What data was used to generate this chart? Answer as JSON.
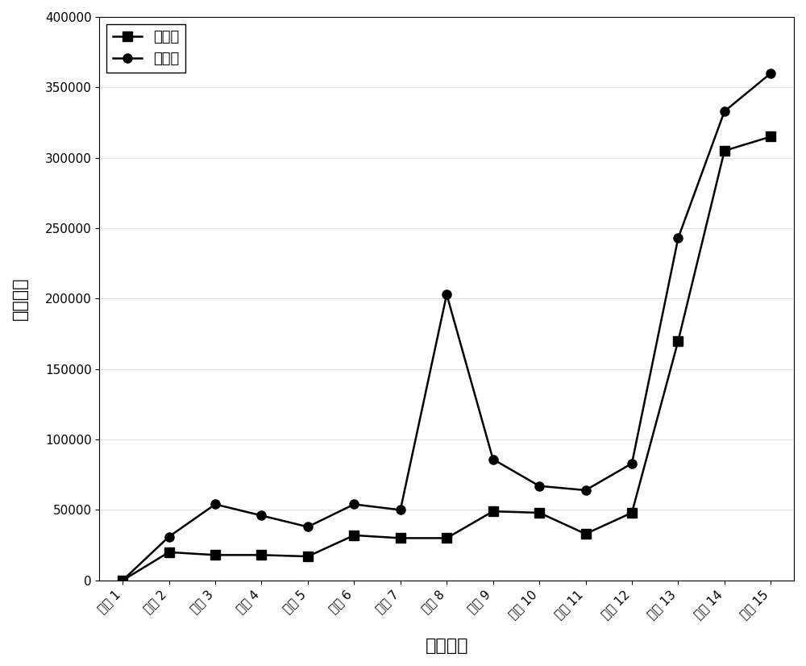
{
  "x_labels": [
    "服务 1",
    "服务 2",
    "服务 3",
    "服务 4",
    "服务 5",
    "服务 6",
    "服务 7",
    "服务 8",
    "服务 9",
    "服务 10",
    "服务 11",
    "服务 12",
    "服务 13",
    "服务 14",
    "服务 15"
  ],
  "after_decoupling": [
    0,
    20000,
    18000,
    18000,
    17000,
    32000,
    30000,
    30000,
    49000,
    48000,
    33000,
    48000,
    170000,
    305000,
    315000
  ],
  "before_decoupling": [
    0,
    31000,
    54000,
    46000,
    38000,
    54000,
    50000,
    203000,
    86000,
    67000,
    64000,
    83000,
    243000,
    333000,
    360000
  ],
  "xlabel": "服务编号",
  "ylabel": "通信开销",
  "ylim": [
    0,
    400000
  ],
  "xlim_start": 0,
  "legend_after": "解耦后",
  "legend_before": "解耦前",
  "line_color": "#000000",
  "marker_after": "s",
  "marker_before": "o",
  "title": "",
  "yticks": [
    0,
    50000,
    100000,
    150000,
    200000,
    250000,
    300000,
    350000,
    400000
  ],
  "figsize": [
    10.0,
    8.26
  ],
  "dpi": 100
}
